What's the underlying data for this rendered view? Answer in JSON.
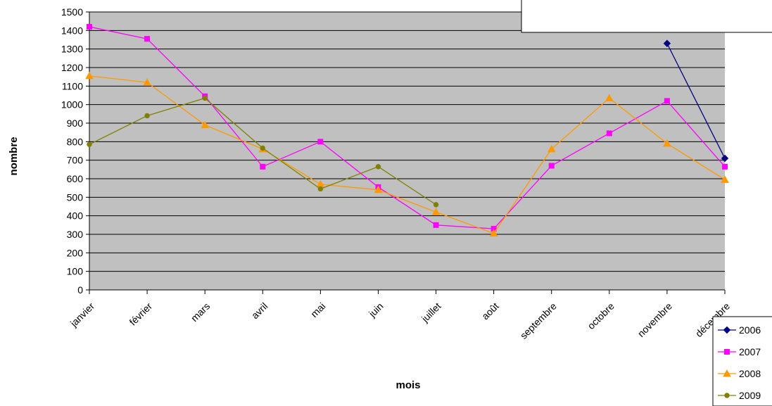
{
  "chart_data": {
    "type": "line",
    "title": "",
    "xlabel": "mois",
    "ylabel": "nombre",
    "ylim": [
      0,
      1500
    ],
    "ytick_step": 100,
    "grid": true,
    "legend_position": "bottom-right",
    "plot_background": "#c0c0c0",
    "categories": [
      "janvier",
      "février",
      "mars",
      "avril",
      "mai",
      "juin",
      "juillet",
      "août",
      "septembre",
      "octobre",
      "novembre",
      "décembre"
    ],
    "series": [
      {
        "name": "2006",
        "color": "#000080",
        "marker": "diamond",
        "values": [
          null,
          null,
          null,
          null,
          null,
          null,
          null,
          null,
          null,
          null,
          1330,
          710
        ]
      },
      {
        "name": "2007",
        "color": "#ff00ff",
        "marker": "square",
        "values": [
          1420,
          1355,
          1045,
          665,
          800,
          555,
          350,
          330,
          670,
          845,
          1020,
          665
        ]
      },
      {
        "name": "2008",
        "color": "#ff9900",
        "marker": "triangle",
        "values": [
          1155,
          1120,
          890,
          760,
          570,
          540,
          420,
          305,
          760,
          1035,
          790,
          595
        ]
      },
      {
        "name": "2009",
        "color": "#808000",
        "marker": "circle",
        "values": [
          785,
          940,
          1035,
          765,
          545,
          665,
          460,
          null,
          null,
          null,
          null,
          null
        ]
      }
    ]
  }
}
